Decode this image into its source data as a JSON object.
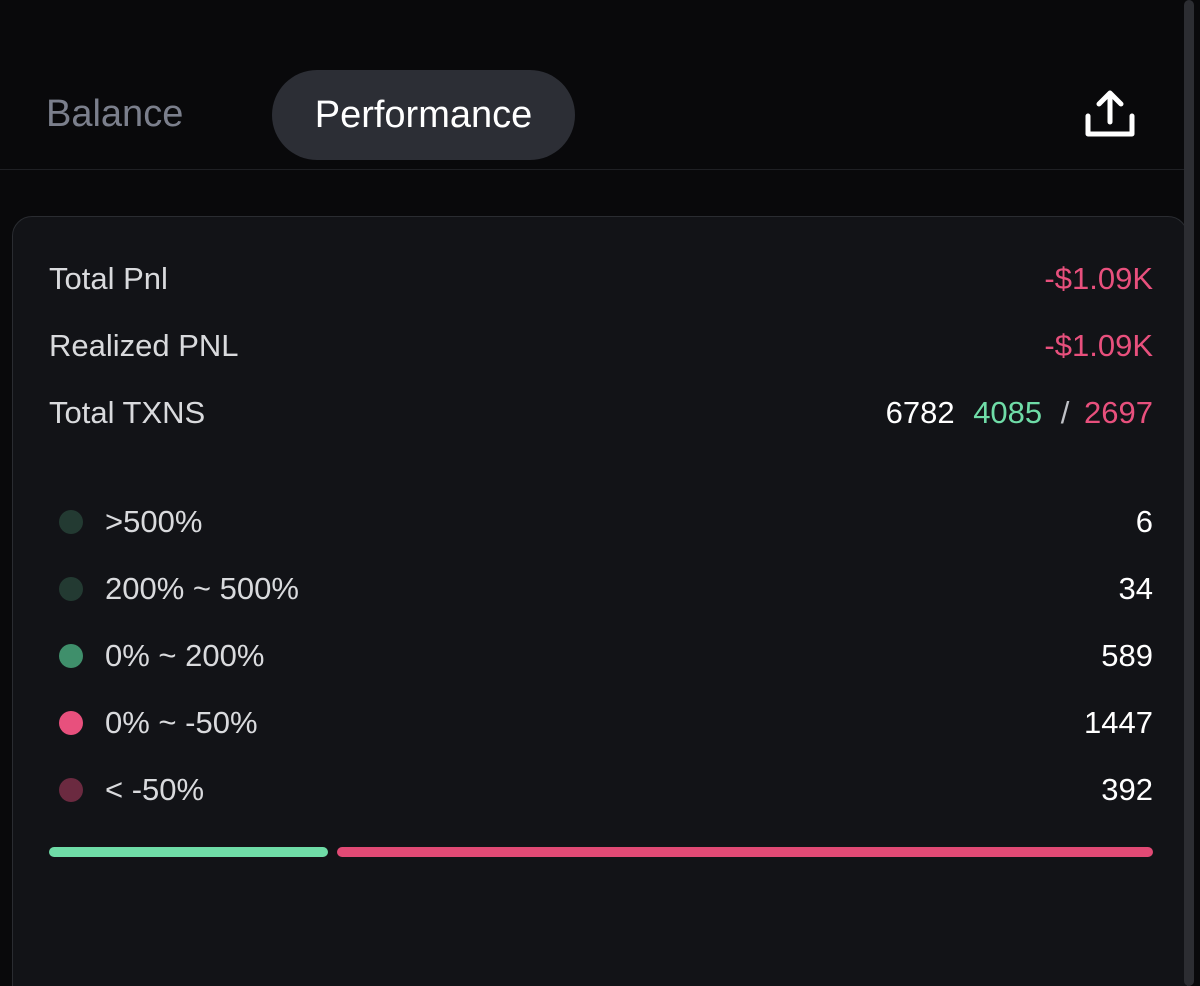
{
  "tabs": [
    {
      "label": "Balance",
      "active": false
    },
    {
      "label": "Performance",
      "active": true
    }
  ],
  "header": {
    "share_icon": "share-upload-icon"
  },
  "summary": {
    "total_pnl": {
      "label": "Total Pnl",
      "value": "-$1.09K"
    },
    "realized_pnl": {
      "label": "Realized PNL",
      "value": "-$1.09K"
    },
    "total_txns": {
      "label": "Total TXNS",
      "total": "6782",
      "wins": "4085",
      "separator": "/",
      "losses": "2697"
    }
  },
  "distribution": [
    {
      "label": ">500%",
      "count": "6",
      "color": "#233a32"
    },
    {
      "label": "200% ~ 500%",
      "count": "34",
      "color": "#233a32"
    },
    {
      "label": "0% ~ 200%",
      "count": "589",
      "color": "#3f8f6b"
    },
    {
      "label": "0% ~ -50%",
      "count": "1447",
      "color": "#e8507d"
    },
    {
      "label": "< -50%",
      "count": "392",
      "color": "#6b2a40"
    }
  ],
  "ratio_bar": {
    "win_fraction": 0.2545,
    "win_color": "#6fdca7",
    "loss_color": "#e14a75"
  },
  "colors": {
    "background": "#09090b",
    "card": "#121317",
    "negative": "#e8507d",
    "positive": "#6fdca7"
  }
}
